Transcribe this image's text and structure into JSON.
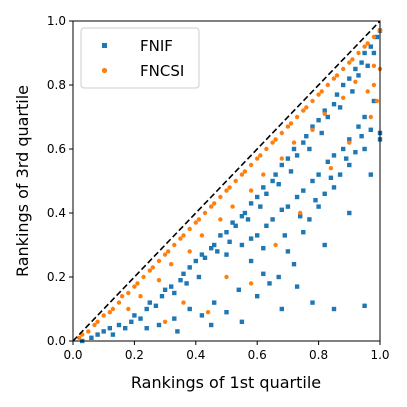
{
  "chart_data": {
    "type": "scatter",
    "title": "",
    "xlabel": "Rankings of 1st quartile",
    "ylabel": "Rankings of 3rd quartile",
    "xlim": [
      0.0,
      1.0
    ],
    "ylim": [
      0.0,
      1.0
    ],
    "xticks": [
      "0.0",
      "0.2",
      "0.4",
      "0.6",
      "0.8",
      "1.0"
    ],
    "yticks": [
      "0.0",
      "0.2",
      "0.4",
      "0.6",
      "0.8",
      "1.0"
    ],
    "grid": false,
    "legend_position": "top-left",
    "reference_line": {
      "style": "dashed",
      "color": "#000000",
      "points": [
        [
          0.0,
          0.0
        ],
        [
          1.0,
          1.0
        ]
      ]
    },
    "series": [
      {
        "name": "FNIF",
        "color": "#1f77b4",
        "marker": "square",
        "points": [
          [
            0.03,
            0.0
          ],
          [
            0.06,
            0.01
          ],
          [
            0.08,
            0.02
          ],
          [
            0.1,
            0.03
          ],
          [
            0.12,
            0.04
          ],
          [
            0.13,
            0.02
          ],
          [
            0.15,
            0.05
          ],
          [
            0.17,
            0.04
          ],
          [
            0.19,
            0.06
          ],
          [
            0.2,
            0.08
          ],
          [
            0.22,
            0.07
          ],
          [
            0.24,
            0.1
          ],
          [
            0.25,
            0.12
          ],
          [
            0.27,
            0.11
          ],
          [
            0.29,
            0.14
          ],
          [
            0.3,
            0.16
          ],
          [
            0.32,
            0.17
          ],
          [
            0.33,
            0.15
          ],
          [
            0.35,
            0.19
          ],
          [
            0.36,
            0.21
          ],
          [
            0.37,
            0.18
          ],
          [
            0.38,
            0.23
          ],
          [
            0.4,
            0.25
          ],
          [
            0.41,
            0.2
          ],
          [
            0.42,
            0.27
          ],
          [
            0.43,
            0.26
          ],
          [
            0.45,
            0.29
          ],
          [
            0.46,
            0.3
          ],
          [
            0.47,
            0.28
          ],
          [
            0.48,
            0.33
          ],
          [
            0.5,
            0.34
          ],
          [
            0.51,
            0.31
          ],
          [
            0.52,
            0.37
          ],
          [
            0.53,
            0.36
          ],
          [
            0.55,
            0.39
          ],
          [
            0.56,
            0.4
          ],
          [
            0.57,
            0.38
          ],
          [
            0.58,
            0.43
          ],
          [
            0.6,
            0.45
          ],
          [
            0.61,
            0.42
          ],
          [
            0.62,
            0.48
          ],
          [
            0.63,
            0.46
          ],
          [
            0.65,
            0.5
          ],
          [
            0.66,
            0.52
          ],
          [
            0.67,
            0.49
          ],
          [
            0.68,
            0.55
          ],
          [
            0.7,
            0.57
          ],
          [
            0.71,
            0.53
          ],
          [
            0.72,
            0.6
          ],
          [
            0.73,
            0.58
          ],
          [
            0.75,
            0.62
          ],
          [
            0.76,
            0.64
          ],
          [
            0.77,
            0.6
          ],
          [
            0.78,
            0.67
          ],
          [
            0.8,
            0.69
          ],
          [
            0.81,
            0.65
          ],
          [
            0.82,
            0.72
          ],
          [
            0.83,
            0.7
          ],
          [
            0.85,
            0.74
          ],
          [
            0.86,
            0.77
          ],
          [
            0.87,
            0.73
          ],
          [
            0.88,
            0.8
          ],
          [
            0.9,
            0.82
          ],
          [
            0.91,
            0.78
          ],
          [
            0.92,
            0.85
          ],
          [
            0.93,
            0.83
          ],
          [
            0.94,
            0.87
          ],
          [
            0.95,
            0.9
          ],
          [
            0.96,
            0.86
          ],
          [
            0.97,
            0.92
          ],
          [
            0.98,
            0.9
          ],
          [
            0.99,
            0.95
          ],
          [
            1.0,
            0.97
          ],
          [
            0.5,
            0.27
          ],
          [
            0.55,
            0.3
          ],
          [
            0.6,
            0.33
          ],
          [
            0.65,
            0.38
          ],
          [
            0.7,
            0.42
          ],
          [
            0.75,
            0.47
          ],
          [
            0.8,
            0.52
          ],
          [
            0.85,
            0.58
          ],
          [
            0.9,
            0.63
          ],
          [
            0.95,
            0.7
          ],
          [
            0.58,
            0.32
          ],
          [
            0.63,
            0.36
          ],
          [
            0.68,
            0.41
          ],
          [
            0.73,
            0.45
          ],
          [
            0.78,
            0.5
          ],
          [
            0.83,
            0.56
          ],
          [
            0.88,
            0.6
          ],
          [
            0.93,
            0.67
          ],
          [
            0.98,
            0.75
          ],
          [
            0.62,
            0.21
          ],
          [
            0.7,
            0.28
          ],
          [
            0.75,
            0.34
          ],
          [
            0.8,
            0.42
          ],
          [
            0.85,
            0.48
          ],
          [
            0.9,
            0.55
          ],
          [
            0.95,
            0.6
          ],
          [
            1.0,
            0.65
          ],
          [
            1.0,
            0.63
          ],
          [
            0.64,
            0.18
          ],
          [
            0.72,
            0.24
          ],
          [
            0.77,
            0.38
          ],
          [
            0.82,
            0.46
          ],
          [
            0.87,
            0.52
          ],
          [
            0.92,
            0.59
          ],
          [
            0.97,
            0.66
          ],
          [
            0.54,
            0.16
          ],
          [
            0.6,
            0.14
          ],
          [
            0.67,
            0.2
          ],
          [
            0.46,
            0.12
          ],
          [
            0.42,
            0.08
          ],
          [
            0.38,
            0.1
          ],
          [
            0.33,
            0.07
          ],
          [
            0.28,
            0.05
          ],
          [
            0.24,
            0.04
          ],
          [
            0.68,
            0.1
          ],
          [
            0.78,
            0.12
          ],
          [
            0.85,
            0.1
          ],
          [
            0.95,
            0.11
          ],
          [
            0.55,
            0.06
          ],
          [
            0.5,
            0.09
          ],
          [
            0.73,
            0.17
          ],
          [
            0.82,
            0.3
          ],
          [
            0.9,
            0.4
          ],
          [
            0.97,
            0.52
          ],
          [
            0.34,
            0.03
          ],
          [
            0.45,
            0.05
          ],
          [
            0.58,
            0.25
          ],
          [
            0.62,
            0.29
          ],
          [
            0.69,
            0.33
          ],
          [
            0.74,
            0.39
          ],
          [
            0.79,
            0.44
          ],
          [
            0.84,
            0.51
          ],
          [
            0.89,
            0.57
          ],
          [
            0.94,
            0.64
          ]
        ]
      },
      {
        "name": "FNCSI",
        "color": "#ff7f0e",
        "marker": "circle",
        "points": [
          [
            0.02,
            0.01
          ],
          [
            0.05,
            0.03
          ],
          [
            0.08,
            0.06
          ],
          [
            0.1,
            0.08
          ],
          [
            0.13,
            0.1
          ],
          [
            0.15,
            0.12
          ],
          [
            0.18,
            0.15
          ],
          [
            0.2,
            0.17
          ],
          [
            0.23,
            0.2
          ],
          [
            0.25,
            0.22
          ],
          [
            0.28,
            0.25
          ],
          [
            0.3,
            0.27
          ],
          [
            0.33,
            0.3
          ],
          [
            0.35,
            0.32
          ],
          [
            0.38,
            0.35
          ],
          [
            0.4,
            0.37
          ],
          [
            0.43,
            0.4
          ],
          [
            0.45,
            0.42
          ],
          [
            0.48,
            0.45
          ],
          [
            0.5,
            0.47
          ],
          [
            0.53,
            0.5
          ],
          [
            0.55,
            0.52
          ],
          [
            0.58,
            0.55
          ],
          [
            0.6,
            0.57
          ],
          [
            0.63,
            0.6
          ],
          [
            0.65,
            0.62
          ],
          [
            0.68,
            0.65
          ],
          [
            0.7,
            0.67
          ],
          [
            0.73,
            0.7
          ],
          [
            0.75,
            0.72
          ],
          [
            0.78,
            0.75
          ],
          [
            0.8,
            0.77
          ],
          [
            0.83,
            0.8
          ],
          [
            0.85,
            0.82
          ],
          [
            0.88,
            0.85
          ],
          [
            0.9,
            0.87
          ],
          [
            0.93,
            0.9
          ],
          [
            0.95,
            0.92
          ],
          [
            0.98,
            0.95
          ],
          [
            1.0,
            0.97
          ],
          [
            0.18,
            0.1
          ],
          [
            0.28,
            0.19
          ],
          [
            0.38,
            0.28
          ],
          [
            0.48,
            0.38
          ],
          [
            0.58,
            0.47
          ],
          [
            0.68,
            0.57
          ],
          [
            0.78,
            0.66
          ],
          [
            0.88,
            0.76
          ],
          [
            0.98,
            0.86
          ],
          [
            0.22,
            0.14
          ],
          [
            0.32,
            0.24
          ],
          [
            0.42,
            0.33
          ],
          [
            0.52,
            0.42
          ],
          [
            0.62,
            0.52
          ],
          [
            0.72,
            0.62
          ],
          [
            0.82,
            0.71
          ],
          [
            0.92,
            0.81
          ],
          [
            0.96,
            0.78
          ],
          [
            0.98,
            0.8
          ],
          [
            1.0,
            0.85
          ],
          [
            0.99,
            0.75
          ],
          [
            0.97,
            0.7
          ],
          [
            0.3,
            0.06
          ],
          [
            0.44,
            0.09
          ],
          [
            0.58,
            0.18
          ],
          [
            0.36,
            0.12
          ],
          [
            0.5,
            0.2
          ],
          [
            0.66,
            0.3
          ],
          [
            0.74,
            0.4
          ],
          [
            0.84,
            0.54
          ],
          [
            0.9,
            0.62
          ],
          [
            0.03,
            0.02
          ],
          [
            0.07,
            0.05
          ],
          [
            0.12,
            0.09
          ],
          [
            0.16,
            0.14
          ],
          [
            0.21,
            0.18
          ],
          [
            0.26,
            0.23
          ],
          [
            0.31,
            0.28
          ],
          [
            0.36,
            0.33
          ],
          [
            0.41,
            0.38
          ],
          [
            0.46,
            0.43
          ],
          [
            0.51,
            0.48
          ],
          [
            0.56,
            0.53
          ],
          [
            0.61,
            0.58
          ],
          [
            0.66,
            0.63
          ],
          [
            0.71,
            0.68
          ],
          [
            0.76,
            0.73
          ],
          [
            0.81,
            0.78
          ],
          [
            0.86,
            0.83
          ],
          [
            0.91,
            0.88
          ],
          [
            0.96,
            0.93
          ]
        ]
      }
    ]
  }
}
